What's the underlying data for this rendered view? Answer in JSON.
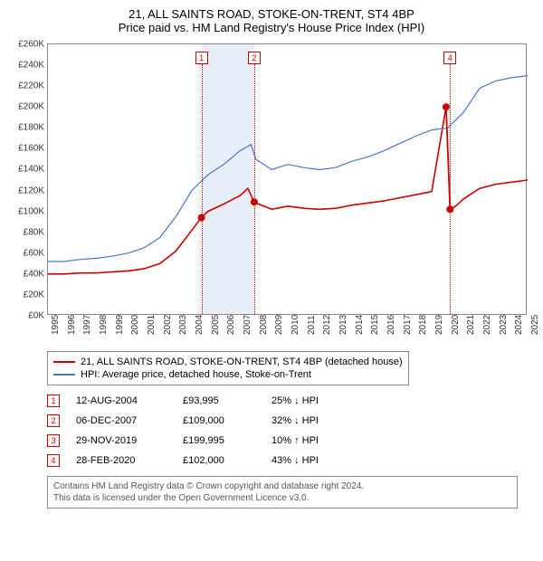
{
  "title": "21, ALL SAINTS ROAD, STOKE-ON-TRENT, ST4 4BP",
  "subtitle": "Price paid vs. HM Land Registry's House Price Index (HPI)",
  "chart": {
    "type": "line",
    "background_color": "#ffffff",
    "border_color": "#888888",
    "title_fontsize": 13,
    "label_fontsize": 10,
    "x_years": [
      1995,
      1996,
      1997,
      1998,
      1999,
      2000,
      2001,
      2002,
      2003,
      2004,
      2005,
      2006,
      2007,
      2008,
      2009,
      2010,
      2011,
      2012,
      2013,
      2014,
      2015,
      2016,
      2017,
      2018,
      2019,
      2020,
      2021,
      2022,
      2023,
      2024,
      2025
    ],
    "xlim": [
      1995,
      2025
    ],
    "y_ticks": [
      0,
      20,
      40,
      60,
      80,
      100,
      120,
      140,
      160,
      180,
      200,
      220,
      240,
      260
    ],
    "ylim": [
      0,
      260
    ],
    "y_prefix": "£",
    "y_suffix": "K",
    "shade_band": {
      "start": 2004.6,
      "end": 2007.9,
      "color": "#e8eef7"
    },
    "markers": [
      {
        "n": "1",
        "x": 2004.6
      },
      {
        "n": "2",
        "x": 2007.9
      },
      {
        "n": "4",
        "x": 2020.15
      }
    ],
    "sale_points": [
      {
        "x": 2004.6,
        "y": 94
      },
      {
        "x": 2007.9,
        "y": 109
      },
      {
        "x": 2019.9,
        "y": 200
      },
      {
        "x": 2020.15,
        "y": 102
      }
    ],
    "point_color": "#cc0000",
    "point_radius": 4,
    "series": [
      {
        "name": "price_paid",
        "color": "#cc0000",
        "width": 1.6,
        "data": [
          [
            1995,
            40
          ],
          [
            1996,
            40
          ],
          [
            1997,
            41
          ],
          [
            1998,
            41
          ],
          [
            1999,
            42
          ],
          [
            2000,
            43
          ],
          [
            2001,
            45
          ],
          [
            2002,
            50
          ],
          [
            2003,
            62
          ],
          [
            2004,
            82
          ],
          [
            2004.6,
            94
          ],
          [
            2005,
            100
          ],
          [
            2006,
            107
          ],
          [
            2007,
            115
          ],
          [
            2007.5,
            122
          ],
          [
            2007.9,
            109
          ],
          [
            2008,
            108
          ],
          [
            2009,
            102
          ],
          [
            2010,
            105
          ],
          [
            2011,
            103
          ],
          [
            2012,
            102
          ],
          [
            2013,
            103
          ],
          [
            2014,
            106
          ],
          [
            2015,
            108
          ],
          [
            2016,
            110
          ],
          [
            2017,
            113
          ],
          [
            2018,
            116
          ],
          [
            2019,
            119
          ],
          [
            2019.9,
            200
          ],
          [
            2020.15,
            102
          ],
          [
            2020.5,
            105
          ],
          [
            2021,
            112
          ],
          [
            2022,
            122
          ],
          [
            2023,
            126
          ],
          [
            2024,
            128
          ],
          [
            2025,
            130
          ]
        ]
      },
      {
        "name": "hpi",
        "color": "#4a74c9",
        "width": 1.2,
        "data": [
          [
            1995,
            52
          ],
          [
            1996,
            52
          ],
          [
            1997,
            54
          ],
          [
            1998,
            55
          ],
          [
            1999,
            57
          ],
          [
            2000,
            60
          ],
          [
            2001,
            65
          ],
          [
            2002,
            75
          ],
          [
            2003,
            95
          ],
          [
            2004,
            120
          ],
          [
            2005,
            135
          ],
          [
            2006,
            145
          ],
          [
            2007,
            158
          ],
          [
            2007.7,
            164
          ],
          [
            2008,
            150
          ],
          [
            2009,
            140
          ],
          [
            2010,
            145
          ],
          [
            2011,
            142
          ],
          [
            2012,
            140
          ],
          [
            2013,
            142
          ],
          [
            2014,
            148
          ],
          [
            2015,
            152
          ],
          [
            2016,
            158
          ],
          [
            2017,
            165
          ],
          [
            2018,
            172
          ],
          [
            2019,
            178
          ],
          [
            2020,
            180
          ],
          [
            2021,
            195
          ],
          [
            2022,
            218
          ],
          [
            2023,
            225
          ],
          [
            2024,
            228
          ],
          [
            2025,
            230
          ]
        ]
      }
    ]
  },
  "legend": [
    {
      "color": "#cc0000",
      "label": "21, ALL SAINTS ROAD, STOKE-ON-TRENT, ST4 4BP (detached house)"
    },
    {
      "color": "#4a74c9",
      "label": "HPI: Average price, detached house, Stoke-on-Trent"
    }
  ],
  "events": [
    {
      "n": "1",
      "date": "12-AUG-2004",
      "price": "£93,995",
      "pct": "25% ↓ HPI"
    },
    {
      "n": "2",
      "date": "06-DEC-2007",
      "price": "£109,000",
      "pct": "32% ↓ HPI"
    },
    {
      "n": "3",
      "date": "29-NOV-2019",
      "price": "£199,995",
      "pct": "10% ↑ HPI"
    },
    {
      "n": "4",
      "date": "28-FEB-2020",
      "price": "£102,000",
      "pct": "43% ↓ HPI"
    }
  ],
  "footer_line1": "Contains HM Land Registry data © Crown copyright and database right 2024.",
  "footer_line2": "This data is licensed under the Open Government Licence v3.0."
}
